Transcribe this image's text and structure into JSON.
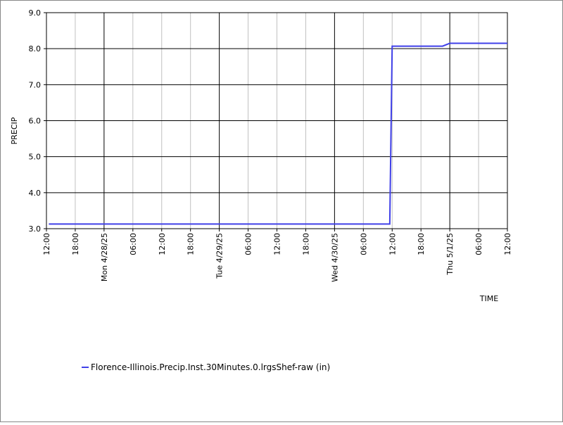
{
  "chart_data": {
    "type": "line",
    "y_label": "PRECIP",
    "x_label": "TIME",
    "x": [
      0.5,
      71.5,
      72,
      82.5,
      84,
      96
    ],
    "series": [
      {
        "name": "Florence-Illinois.Precip.Inst.30Minutes.0.lrgsShef-raw (in)",
        "color": "#4040e8",
        "values": [
          3.13,
          3.13,
          8.07,
          8.07,
          8.15,
          8.15
        ]
      }
    ],
    "xlim": [
      0,
      96
    ],
    "xticks": [
      {
        "value": 0,
        "label": "12:00"
      },
      {
        "value": 6,
        "label": "18:00"
      },
      {
        "value": 12,
        "label": "Mon 4/28/25"
      },
      {
        "value": 18,
        "label": "06:00"
      },
      {
        "value": 24,
        "label": "12:00"
      },
      {
        "value": 30,
        "label": "18:00"
      },
      {
        "value": 36,
        "label": "Tue 4/29/25"
      },
      {
        "value": 42,
        "label": "06:00"
      },
      {
        "value": 48,
        "label": "12:00"
      },
      {
        "value": 54,
        "label": "18:00"
      },
      {
        "value": 60,
        "label": "Wed 4/30/25"
      },
      {
        "value": 66,
        "label": "06:00"
      },
      {
        "value": 72,
        "label": "12:00"
      },
      {
        "value": 78,
        "label": "18:00"
      },
      {
        "value": 84,
        "label": "Thu 5/1/25"
      },
      {
        "value": 90,
        "label": "06:00"
      },
      {
        "value": 96,
        "label": "12:00"
      }
    ],
    "ylim": [
      3,
      9
    ],
    "yticks": [
      {
        "value": 3,
        "label": "3.0"
      },
      {
        "value": 4,
        "label": "4.0"
      },
      {
        "value": 5,
        "label": "5.0"
      },
      {
        "value": 6,
        "label": "6.0"
      },
      {
        "value": 7,
        "label": "7.0"
      },
      {
        "value": 8,
        "label": "8.0"
      },
      {
        "value": 9,
        "label": "9.0"
      }
    ],
    "grid": true
  }
}
